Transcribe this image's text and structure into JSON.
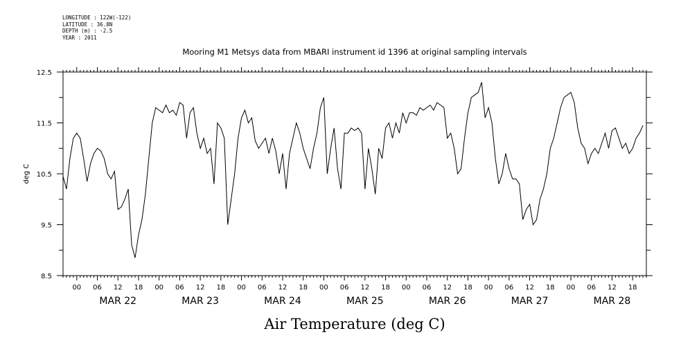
{
  "header_info": {
    "longitude": "LONGITUDE : 122W(-122)",
    "latitude": "LATITUDE : 36.8N",
    "depth": "DEPTH (m) : -2.5",
    "year": "YEAR : 2011"
  },
  "chart_data": {
    "type": "line",
    "title": "Mooring M1 Metsys data from MBARI instrument id 1396 at original sampling intervals",
    "xlabel": "Air Temperature (deg C)",
    "ylabel": "deg C",
    "ylim": [
      8.5,
      12.5
    ],
    "yticks": [
      "8.5",
      "9.5",
      "10.5",
      "11.5",
      "12.5"
    ],
    "xlim": [
      "2011-03-21T20:00",
      "2011-03-28T22:00"
    ],
    "hour_ticks": [
      "00",
      "06",
      "12",
      "18"
    ],
    "day_labels": [
      "MAR 22",
      "MAR 23",
      "MAR 24",
      "MAR 25",
      "MAR 26",
      "MAR 27",
      "MAR 28"
    ],
    "grid": false,
    "x": [
      "2011-03-21T20:00",
      "2011-03-21T21:00",
      "2011-03-21T22:00",
      "2011-03-21T23:00",
      "2011-03-22T00:00",
      "2011-03-22T01:00",
      "2011-03-22T02:00",
      "2011-03-22T03:00",
      "2011-03-22T04:00",
      "2011-03-22T05:00",
      "2011-03-22T06:00",
      "2011-03-22T07:00",
      "2011-03-22T08:00",
      "2011-03-22T09:00",
      "2011-03-22T10:00",
      "2011-03-22T11:00",
      "2011-03-22T12:00",
      "2011-03-22T13:00",
      "2011-03-22T14:00",
      "2011-03-22T15:00",
      "2011-03-22T16:00",
      "2011-03-22T17:00",
      "2011-03-22T18:00",
      "2011-03-22T19:00",
      "2011-03-22T20:00",
      "2011-03-22T21:00",
      "2011-03-22T22:00",
      "2011-03-22T23:00",
      "2011-03-23T00:00",
      "2011-03-23T01:00",
      "2011-03-23T02:00",
      "2011-03-23T03:00",
      "2011-03-23T04:00",
      "2011-03-23T05:00",
      "2011-03-23T06:00",
      "2011-03-23T07:00",
      "2011-03-23T08:00",
      "2011-03-23T09:00",
      "2011-03-23T10:00",
      "2011-03-23T11:00",
      "2011-03-23T12:00",
      "2011-03-23T13:00",
      "2011-03-23T14:00",
      "2011-03-23T15:00",
      "2011-03-23T16:00",
      "2011-03-23T17:00",
      "2011-03-23T18:00",
      "2011-03-23T19:00",
      "2011-03-23T20:00",
      "2011-03-23T21:00",
      "2011-03-23T22:00",
      "2011-03-23T23:00",
      "2011-03-24T00:00",
      "2011-03-24T01:00",
      "2011-03-24T02:00",
      "2011-03-24T03:00",
      "2011-03-24T04:00",
      "2011-03-24T05:00",
      "2011-03-24T06:00",
      "2011-03-24T07:00",
      "2011-03-24T08:00",
      "2011-03-24T09:00",
      "2011-03-24T10:00",
      "2011-03-24T11:00",
      "2011-03-24T12:00",
      "2011-03-24T13:00",
      "2011-03-24T14:00",
      "2011-03-24T15:00",
      "2011-03-24T16:00",
      "2011-03-24T17:00",
      "2011-03-24T18:00",
      "2011-03-24T19:00",
      "2011-03-24T20:00",
      "2011-03-24T21:00",
      "2011-03-24T22:00",
      "2011-03-24T23:00",
      "2011-03-25T00:00",
      "2011-03-25T01:00",
      "2011-03-25T02:00",
      "2011-03-25T03:00",
      "2011-03-25T04:00",
      "2011-03-25T05:00",
      "2011-03-25T06:00",
      "2011-03-25T07:00",
      "2011-03-25T08:00",
      "2011-03-25T09:00",
      "2011-03-25T10:00",
      "2011-03-25T11:00",
      "2011-03-25T12:00",
      "2011-03-25T13:00",
      "2011-03-25T14:00",
      "2011-03-25T15:00",
      "2011-03-25T16:00",
      "2011-03-25T17:00",
      "2011-03-25T18:00",
      "2011-03-25T19:00",
      "2011-03-25T20:00",
      "2011-03-25T21:00",
      "2011-03-25T22:00",
      "2011-03-25T23:00",
      "2011-03-26T00:00",
      "2011-03-26T01:00",
      "2011-03-26T02:00",
      "2011-03-26T03:00",
      "2011-03-26T04:00",
      "2011-03-26T05:00",
      "2011-03-26T06:00",
      "2011-03-26T07:00",
      "2011-03-26T08:00",
      "2011-03-26T09:00",
      "2011-03-26T10:00",
      "2011-03-26T11:00",
      "2011-03-26T12:00",
      "2011-03-26T13:00",
      "2011-03-26T14:00",
      "2011-03-26T15:00",
      "2011-03-26T16:00",
      "2011-03-26T17:00",
      "2011-03-26T18:00",
      "2011-03-26T19:00",
      "2011-03-26T20:00",
      "2011-03-26T21:00",
      "2011-03-26T22:00",
      "2011-03-26T23:00",
      "2011-03-27T00:00",
      "2011-03-27T01:00",
      "2011-03-27T02:00",
      "2011-03-27T03:00",
      "2011-03-27T04:00",
      "2011-03-27T05:00",
      "2011-03-27T06:00",
      "2011-03-27T07:00",
      "2011-03-27T08:00",
      "2011-03-27T09:00",
      "2011-03-27T10:00",
      "2011-03-27T11:00",
      "2011-03-27T12:00",
      "2011-03-27T13:00",
      "2011-03-27T14:00",
      "2011-03-27T15:00",
      "2011-03-27T16:00",
      "2011-03-27T17:00",
      "2011-03-27T18:00",
      "2011-03-27T19:00",
      "2011-03-27T20:00",
      "2011-03-27T21:00",
      "2011-03-27T22:00",
      "2011-03-27T23:00",
      "2011-03-28T00:00",
      "2011-03-28T01:00",
      "2011-03-28T02:00",
      "2011-03-28T03:00",
      "2011-03-28T04:00",
      "2011-03-28T05:00",
      "2011-03-28T06:00",
      "2011-03-28T07:00",
      "2011-03-28T08:00",
      "2011-03-28T09:00",
      "2011-03-28T10:00",
      "2011-03-28T11:00",
      "2011-03-28T12:00",
      "2011-03-28T13:00",
      "2011-03-28T14:00",
      "2011-03-28T15:00",
      "2011-03-28T16:00",
      "2011-03-28T17:00",
      "2011-03-28T18:00",
      "2011-03-28T19:00",
      "2011-03-28T20:00",
      "2011-03-28T21:00"
    ],
    "series": [
      {
        "color": "#000000",
        "values": [
          10.45,
          10.2,
          10.8,
          11.2,
          11.3,
          11.2,
          10.8,
          10.35,
          10.7,
          10.9,
          11.0,
          10.95,
          10.8,
          10.5,
          10.4,
          10.55,
          9.8,
          9.85,
          10.0,
          10.2,
          9.1,
          8.85,
          9.3,
          9.6,
          10.1,
          10.8,
          11.5,
          11.8,
          11.75,
          11.7,
          11.85,
          11.7,
          11.75,
          11.65,
          11.9,
          11.85,
          11.2,
          11.7,
          11.8,
          11.3,
          11.0,
          11.2,
          10.9,
          11.0,
          10.3,
          11.5,
          11.4,
          11.2,
          9.5,
          10.0,
          10.5,
          11.2,
          11.6,
          11.75,
          11.5,
          11.6,
          11.15,
          11.0,
          11.1,
          11.2,
          10.9,
          11.2,
          10.95,
          10.5,
          10.9,
          10.2,
          10.9,
          11.2,
          11.5,
          11.3,
          11.0,
          10.8,
          10.6,
          11.0,
          11.3,
          11.8,
          12.0,
          10.5,
          11.0,
          11.4,
          10.6,
          10.2,
          11.3,
          11.3,
          11.4,
          11.35,
          11.4,
          11.3,
          10.2,
          11.0,
          10.6,
          10.1,
          11.0,
          10.8,
          11.4,
          11.5,
          11.2,
          11.5,
          11.3,
          11.7,
          11.5,
          11.7,
          11.7,
          11.65,
          11.8,
          11.75,
          11.8,
          11.85,
          11.75,
          11.9,
          11.85,
          11.8,
          11.2,
          11.3,
          11.0,
          10.5,
          10.6,
          11.2,
          11.7,
          12.0,
          12.05,
          12.1,
          12.3,
          11.6,
          11.8,
          11.5,
          10.8,
          10.3,
          10.5,
          10.9,
          10.6,
          10.4,
          10.4,
          10.3,
          9.6,
          9.8,
          9.9,
          9.5,
          9.6,
          10.0,
          10.2,
          10.5,
          11.0,
          11.2,
          11.5,
          11.8,
          12.0,
          12.05,
          12.1,
          11.9,
          11.4,
          11.1,
          11.0,
          10.7,
          10.9,
          11.0,
          10.9,
          11.1,
          11.3,
          11.0,
          11.35,
          11.4,
          11.2,
          11.0,
          11.1,
          10.9,
          11.0,
          11.2,
          11.3,
          11.45
        ]
      }
    ]
  }
}
